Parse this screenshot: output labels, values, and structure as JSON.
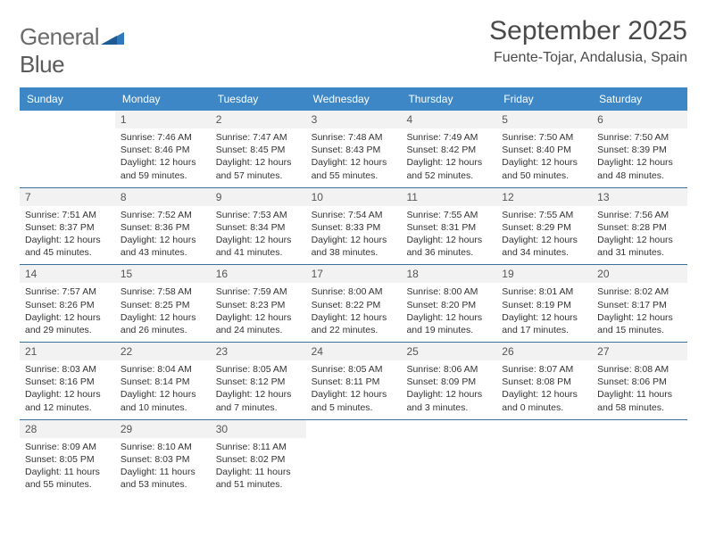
{
  "brand": {
    "part1": "General",
    "part2": "Blue",
    "triangle_color": "#2f78bd"
  },
  "header": {
    "title": "September 2025",
    "subtitle": "Fuente-Tojar, Andalusia, Spain"
  },
  "theme": {
    "header_bg": "#3d87c7",
    "header_text": "#ffffff",
    "daynum_bg": "#f2f2f2",
    "row_border": "#3d6f9b",
    "body_text": "#333333",
    "title_color": "#4a4a4a"
  },
  "dayNames": [
    "Sunday",
    "Monday",
    "Tuesday",
    "Wednesday",
    "Thursday",
    "Friday",
    "Saturday"
  ],
  "weeks": [
    [
      {
        "day": "",
        "sunrise": "",
        "sunset": "",
        "daylight": ""
      },
      {
        "day": "1",
        "sunrise": "Sunrise: 7:46 AM",
        "sunset": "Sunset: 8:46 PM",
        "daylight": "Daylight: 12 hours and 59 minutes."
      },
      {
        "day": "2",
        "sunrise": "Sunrise: 7:47 AM",
        "sunset": "Sunset: 8:45 PM",
        "daylight": "Daylight: 12 hours and 57 minutes."
      },
      {
        "day": "3",
        "sunrise": "Sunrise: 7:48 AM",
        "sunset": "Sunset: 8:43 PM",
        "daylight": "Daylight: 12 hours and 55 minutes."
      },
      {
        "day": "4",
        "sunrise": "Sunrise: 7:49 AM",
        "sunset": "Sunset: 8:42 PM",
        "daylight": "Daylight: 12 hours and 52 minutes."
      },
      {
        "day": "5",
        "sunrise": "Sunrise: 7:50 AM",
        "sunset": "Sunset: 8:40 PM",
        "daylight": "Daylight: 12 hours and 50 minutes."
      },
      {
        "day": "6",
        "sunrise": "Sunrise: 7:50 AM",
        "sunset": "Sunset: 8:39 PM",
        "daylight": "Daylight: 12 hours and 48 minutes."
      }
    ],
    [
      {
        "day": "7",
        "sunrise": "Sunrise: 7:51 AM",
        "sunset": "Sunset: 8:37 PM",
        "daylight": "Daylight: 12 hours and 45 minutes."
      },
      {
        "day": "8",
        "sunrise": "Sunrise: 7:52 AM",
        "sunset": "Sunset: 8:36 PM",
        "daylight": "Daylight: 12 hours and 43 minutes."
      },
      {
        "day": "9",
        "sunrise": "Sunrise: 7:53 AM",
        "sunset": "Sunset: 8:34 PM",
        "daylight": "Daylight: 12 hours and 41 minutes."
      },
      {
        "day": "10",
        "sunrise": "Sunrise: 7:54 AM",
        "sunset": "Sunset: 8:33 PM",
        "daylight": "Daylight: 12 hours and 38 minutes."
      },
      {
        "day": "11",
        "sunrise": "Sunrise: 7:55 AM",
        "sunset": "Sunset: 8:31 PM",
        "daylight": "Daylight: 12 hours and 36 minutes."
      },
      {
        "day": "12",
        "sunrise": "Sunrise: 7:55 AM",
        "sunset": "Sunset: 8:29 PM",
        "daylight": "Daylight: 12 hours and 34 minutes."
      },
      {
        "day": "13",
        "sunrise": "Sunrise: 7:56 AM",
        "sunset": "Sunset: 8:28 PM",
        "daylight": "Daylight: 12 hours and 31 minutes."
      }
    ],
    [
      {
        "day": "14",
        "sunrise": "Sunrise: 7:57 AM",
        "sunset": "Sunset: 8:26 PM",
        "daylight": "Daylight: 12 hours and 29 minutes."
      },
      {
        "day": "15",
        "sunrise": "Sunrise: 7:58 AM",
        "sunset": "Sunset: 8:25 PM",
        "daylight": "Daylight: 12 hours and 26 minutes."
      },
      {
        "day": "16",
        "sunrise": "Sunrise: 7:59 AM",
        "sunset": "Sunset: 8:23 PM",
        "daylight": "Daylight: 12 hours and 24 minutes."
      },
      {
        "day": "17",
        "sunrise": "Sunrise: 8:00 AM",
        "sunset": "Sunset: 8:22 PM",
        "daylight": "Daylight: 12 hours and 22 minutes."
      },
      {
        "day": "18",
        "sunrise": "Sunrise: 8:00 AM",
        "sunset": "Sunset: 8:20 PM",
        "daylight": "Daylight: 12 hours and 19 minutes."
      },
      {
        "day": "19",
        "sunrise": "Sunrise: 8:01 AM",
        "sunset": "Sunset: 8:19 PM",
        "daylight": "Daylight: 12 hours and 17 minutes."
      },
      {
        "day": "20",
        "sunrise": "Sunrise: 8:02 AM",
        "sunset": "Sunset: 8:17 PM",
        "daylight": "Daylight: 12 hours and 15 minutes."
      }
    ],
    [
      {
        "day": "21",
        "sunrise": "Sunrise: 8:03 AM",
        "sunset": "Sunset: 8:16 PM",
        "daylight": "Daylight: 12 hours and 12 minutes."
      },
      {
        "day": "22",
        "sunrise": "Sunrise: 8:04 AM",
        "sunset": "Sunset: 8:14 PM",
        "daylight": "Daylight: 12 hours and 10 minutes."
      },
      {
        "day": "23",
        "sunrise": "Sunrise: 8:05 AM",
        "sunset": "Sunset: 8:12 PM",
        "daylight": "Daylight: 12 hours and 7 minutes."
      },
      {
        "day": "24",
        "sunrise": "Sunrise: 8:05 AM",
        "sunset": "Sunset: 8:11 PM",
        "daylight": "Daylight: 12 hours and 5 minutes."
      },
      {
        "day": "25",
        "sunrise": "Sunrise: 8:06 AM",
        "sunset": "Sunset: 8:09 PM",
        "daylight": "Daylight: 12 hours and 3 minutes."
      },
      {
        "day": "26",
        "sunrise": "Sunrise: 8:07 AM",
        "sunset": "Sunset: 8:08 PM",
        "daylight": "Daylight: 12 hours and 0 minutes."
      },
      {
        "day": "27",
        "sunrise": "Sunrise: 8:08 AM",
        "sunset": "Sunset: 8:06 PM",
        "daylight": "Daylight: 11 hours and 58 minutes."
      }
    ],
    [
      {
        "day": "28",
        "sunrise": "Sunrise: 8:09 AM",
        "sunset": "Sunset: 8:05 PM",
        "daylight": "Daylight: 11 hours and 55 minutes."
      },
      {
        "day": "29",
        "sunrise": "Sunrise: 8:10 AM",
        "sunset": "Sunset: 8:03 PM",
        "daylight": "Daylight: 11 hours and 53 minutes."
      },
      {
        "day": "30",
        "sunrise": "Sunrise: 8:11 AM",
        "sunset": "Sunset: 8:02 PM",
        "daylight": "Daylight: 11 hours and 51 minutes."
      },
      {
        "day": "",
        "sunrise": "",
        "sunset": "",
        "daylight": ""
      },
      {
        "day": "",
        "sunrise": "",
        "sunset": "",
        "daylight": ""
      },
      {
        "day": "",
        "sunrise": "",
        "sunset": "",
        "daylight": ""
      },
      {
        "day": "",
        "sunrise": "",
        "sunset": "",
        "daylight": ""
      }
    ]
  ]
}
